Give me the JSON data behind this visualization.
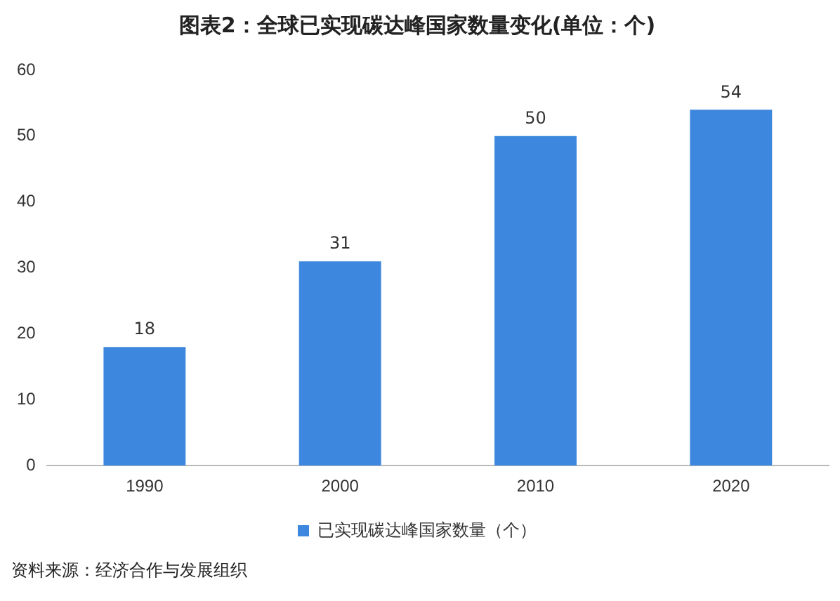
{
  "chart_data": {
    "type": "bar",
    "title": "图表2：全球已实现碳达峰国家数量变化(单位：个)",
    "categories": [
      "1990",
      "2000",
      "2010",
      "2020"
    ],
    "series": [
      {
        "name": "已实现碳达峰国家数量（个）",
        "color": "#3d87de",
        "values": [
          18,
          31,
          50,
          54
        ]
      }
    ],
    "ylim": [
      0,
      60
    ],
    "yticks": [
      0,
      10,
      20,
      30,
      40,
      50,
      60
    ],
    "grid": false,
    "legend": "bottom",
    "data_labels": true,
    "annotations": [
      "资料来源：经济合作与发展组织"
    ]
  }
}
